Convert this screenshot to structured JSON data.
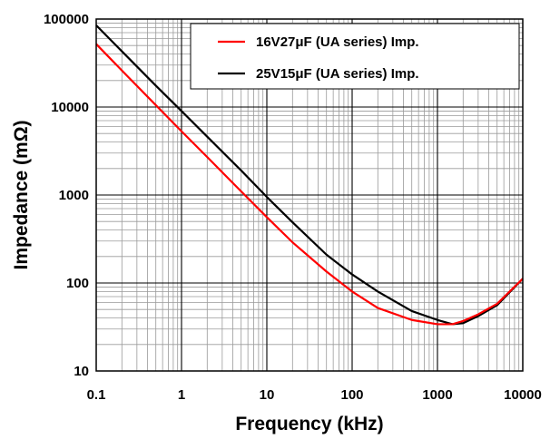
{
  "chart_data": {
    "type": "line",
    "title": "",
    "xlabel": "Frequency  (kHz)",
    "ylabel": "Impedance  (mΩ)",
    "x_scale": "log",
    "y_scale": "log",
    "xlim": [
      0.1,
      10000
    ],
    "ylim": [
      10,
      100000
    ],
    "x_ticks": [
      "0.1",
      "1",
      "10",
      "100",
      "1000",
      "10000"
    ],
    "y_ticks": [
      "10",
      "100",
      "1000",
      "10000",
      "100000"
    ],
    "grid": true,
    "legend_position": "top-right",
    "series": [
      {
        "name": "16V27μF (UA series) Imp.",
        "color": "#ff0000",
        "x": [
          0.1,
          0.2,
          0.5,
          1,
          2,
          5,
          10,
          20,
          50,
          100,
          200,
          500,
          1000,
          1500,
          2000,
          3000,
          5000,
          10000
        ],
        "y": [
          52000,
          26000,
          10500,
          5300,
          2700,
          1100,
          560,
          290,
          135,
          80,
          52,
          38,
          34,
          34,
          37,
          44,
          58,
          112
        ]
      },
      {
        "name": "25V15μF (UA series) Imp.",
        "color": "#000000",
        "x": [
          0.1,
          0.2,
          0.5,
          1,
          2,
          5,
          10,
          20,
          50,
          100,
          200,
          500,
          1000,
          1500,
          2000,
          3000,
          5000,
          10000
        ],
        "y": [
          85000,
          43000,
          17500,
          9000,
          4600,
          1900,
          950,
          490,
          210,
          125,
          80,
          48,
          38,
          34,
          35,
          42,
          56,
          112
        ]
      }
    ]
  }
}
